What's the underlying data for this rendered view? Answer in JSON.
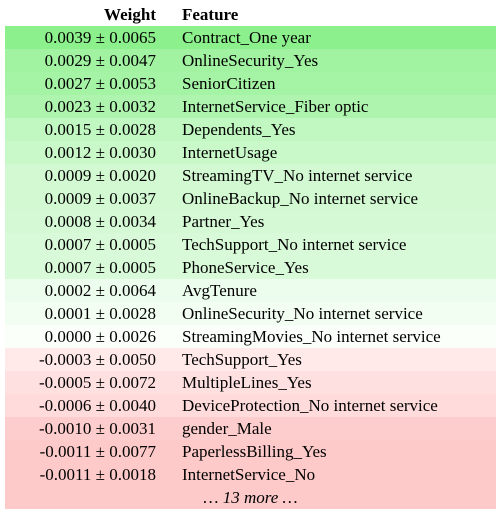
{
  "header": {
    "weight": "Weight",
    "feature": "Feature"
  },
  "rows": [
    {
      "weight": "0.0039 ± 0.0065",
      "feature": "Contract_One year",
      "color": "#8cf08c"
    },
    {
      "weight": "0.0029 ± 0.0047",
      "feature": "OnlineSecurity_Yes",
      "color": "#a1f2a1"
    },
    {
      "weight": "0.0027 ± 0.0053",
      "feature": "SeniorCitizen",
      "color": "#a5f3a5"
    },
    {
      "weight": "0.0023 ± 0.0032",
      "feature": "InternetService_Fiber optic",
      "color": "#aef4ae"
    },
    {
      "weight": "0.0015 ± 0.0028",
      "feature": "Dependents_Yes",
      "color": "#c1f7c1"
    },
    {
      "weight": "0.0012 ± 0.0030",
      "feature": "InternetUsage",
      "color": "#c9f8c9"
    },
    {
      "weight": "0.0009 ± 0.0020",
      "feature": "StreamingTV_No internet service",
      "color": "#d2f9d2"
    },
    {
      "weight": "0.0009 ± 0.0037",
      "feature": "OnlineBackup_No internet service",
      "color": "#d2f9d2"
    },
    {
      "weight": "0.0008 ± 0.0034",
      "feature": "Partner_Yes",
      "color": "#d5f9d5"
    },
    {
      "weight": "0.0007 ± 0.0005",
      "feature": "TechSupport_No internet service",
      "color": "#d9fad9"
    },
    {
      "weight": "0.0007 ± 0.0005",
      "feature": "PhoneService_Yes",
      "color": "#d9fad9"
    },
    {
      "weight": "0.0002 ± 0.0064",
      "feature": "AvgTenure",
      "color": "#edfded"
    },
    {
      "weight": "0.0001 ± 0.0028",
      "feature": "OnlineSecurity_No internet service",
      "color": "#f3fef3"
    },
    {
      "weight": "0.0000 ± 0.0026",
      "feature": "StreamingMovies_No internet service",
      "color": "#fafffa"
    },
    {
      "weight": "-0.0003 ± 0.0050",
      "feature": "TechSupport_Yes",
      "color": "#ffe9e9"
    },
    {
      "weight": "-0.0005 ± 0.0072",
      "feature": "MultipleLines_Yes",
      "color": "#ffe0e0"
    },
    {
      "weight": "-0.0006 ± 0.0040",
      "feature": "DeviceProtection_No internet service",
      "color": "#ffdbdb"
    },
    {
      "weight": "-0.0010 ± 0.0031",
      "feature": "gender_Male",
      "color": "#fdcccc"
    },
    {
      "weight": "-0.0011 ± 0.0077",
      "feature": "PaperlessBilling_Yes",
      "color": "#fdc9c9"
    },
    {
      "weight": "-0.0011 ± 0.0018",
      "feature": "InternetService_No",
      "color": "#fdc9c9"
    }
  ],
  "more": {
    "label": "… 13 more …",
    "color": "#fdc9c9"
  }
}
